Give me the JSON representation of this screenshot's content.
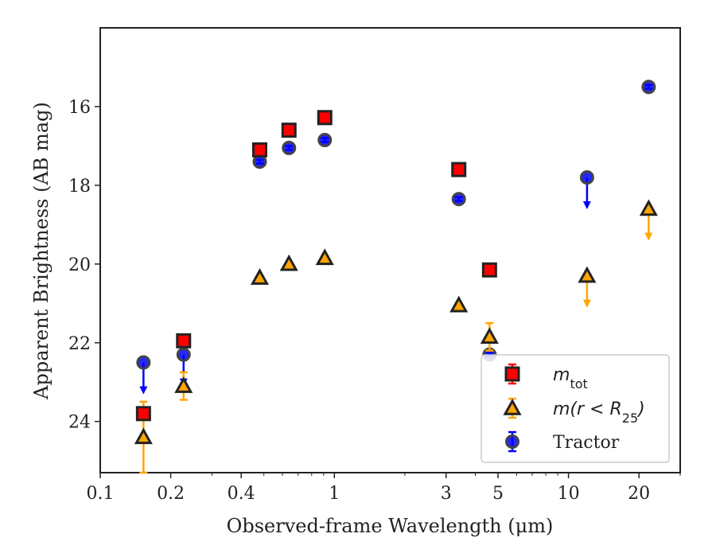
{
  "chart_data": {
    "type": "scatter",
    "xlabel": "Observed-frame Wavelength (μm)",
    "ylabel": "Apparent Brightness (AB mag)",
    "x_scale": "log",
    "xlim": [
      0.1,
      30
    ],
    "ylim": [
      25.3,
      14.0
    ],
    "y_inverted": true,
    "x_ticks": [
      0.1,
      0.2,
      0.4,
      1,
      3,
      5,
      10,
      20
    ],
    "x_tick_labels": [
      "0.1",
      "0.2",
      "0.4",
      "1",
      "3",
      "5",
      "10",
      "20"
    ],
    "y_ticks": [
      16,
      18,
      20,
      22,
      24
    ],
    "y_tick_labels": [
      "16",
      "18",
      "20",
      "22",
      "24"
    ],
    "grid": false,
    "legend": "bottom-right",
    "series": [
      {
        "name": "m_tot",
        "marker": "square",
        "color": "#ff0000",
        "edge": "#222222",
        "errcolor": "#ff0000",
        "points": [
          {
            "x": 0.153,
            "y": 23.8,
            "yerr": 0.05
          },
          {
            "x": 0.227,
            "y": 21.95,
            "yerr": 0.05
          },
          {
            "x": 0.48,
            "y": 17.1,
            "yerr": 0.05
          },
          {
            "x": 0.64,
            "y": 16.6,
            "yerr": 0.05
          },
          {
            "x": 0.91,
            "y": 16.28,
            "yerr": 0.05
          },
          {
            "x": 3.4,
            "y": 17.6,
            "yerr": 0.05
          },
          {
            "x": 4.6,
            "y": 20.15,
            "yerr": 0.05
          }
        ]
      },
      {
        "name": "m(r < R_25)",
        "marker": "triangle",
        "color": "#ffa500",
        "edge": "#222222",
        "errcolor": "#ffa500",
        "points": [
          {
            "x": 0.153,
            "y": 24.4,
            "yerr": 0.9
          },
          {
            "x": 0.227,
            "y": 23.1,
            "yerr": 0.35
          },
          {
            "x": 0.48,
            "y": 20.35,
            "yerr": 0.05
          },
          {
            "x": 0.64,
            "y": 20.0,
            "yerr": 0.05
          },
          {
            "x": 0.91,
            "y": 19.85,
            "yerr": 0.05
          },
          {
            "x": 3.4,
            "y": 21.05,
            "yerr": 0.05
          },
          {
            "x": 4.6,
            "y": 21.85,
            "yerr": 0.35
          },
          {
            "x": 12.0,
            "y": 20.3,
            "upper_limit": true
          },
          {
            "x": 22.0,
            "y": 18.6,
            "upper_limit": true
          }
        ]
      },
      {
        "name": "Tractor",
        "marker": "circle",
        "color": "#0000ff",
        "edge": "#444444",
        "errcolor": "#0000ff",
        "points": [
          {
            "x": 0.153,
            "y": 22.5,
            "upper_limit": true
          },
          {
            "x": 0.227,
            "y": 22.3,
            "upper_limit": true
          },
          {
            "x": 0.48,
            "y": 17.4,
            "yerr": 0.05
          },
          {
            "x": 0.64,
            "y": 17.05,
            "yerr": 0.05
          },
          {
            "x": 0.91,
            "y": 16.85,
            "yerr": 0.05
          },
          {
            "x": 3.4,
            "y": 18.35,
            "yerr": 0.05
          },
          {
            "x": 4.6,
            "y": 22.3,
            "yerr": 0.05
          },
          {
            "x": 12.0,
            "y": 17.8,
            "upper_limit": true
          },
          {
            "x": 22.0,
            "y": 15.5,
            "yerr": 0.05
          }
        ]
      }
    ],
    "legend_labels": {
      "m_tot": {
        "main": "m",
        "sub": "tot"
      },
      "m_r": {
        "main": "m(r < R",
        "sub": "25",
        "close": ")"
      },
      "tractor": "Tractor"
    }
  }
}
